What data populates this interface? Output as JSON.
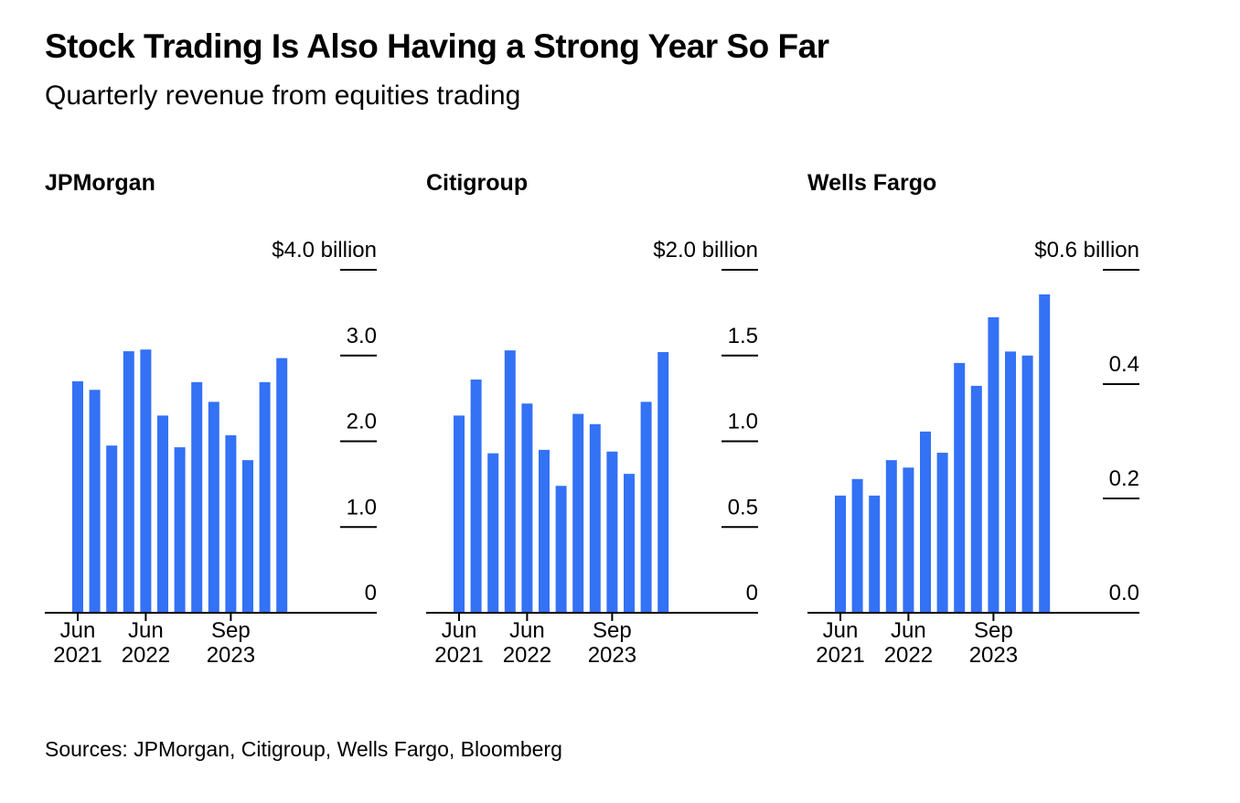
{
  "header": {
    "title": "Stock Trading Is Also Having a Strong Year So Far",
    "subtitle": "Quarterly revenue from equities trading"
  },
  "footer": {
    "source": "Sources: JPMorgan, Citigroup, Wells Fargo, Bloomberg"
  },
  "colors": {
    "bar": "#3371f5",
    "axis": "#000000"
  },
  "chart_data": [
    {
      "type": "bar",
      "title": "JPMorgan",
      "unit_label": "$4.0 billion",
      "ylim": [
        0,
        4.0
      ],
      "yticks": [
        0,
        1.0,
        2.0,
        3.0,
        4.0
      ],
      "ytick_labels": [
        "0",
        "1.0",
        "2.0",
        "3.0",
        "$4.0 billion"
      ],
      "categories": [
        "Q2 2021",
        "Q3 2021",
        "Q4 2021",
        "Q1 2022",
        "Q2 2022",
        "Q3 2022",
        "Q4 2022",
        "Q1 2023",
        "Q2 2023",
        "Q3 2023",
        "Q4 2023",
        "Q1 2024",
        "Q2 2024"
      ],
      "values": [
        2.7,
        2.6,
        1.95,
        3.05,
        3.07,
        2.3,
        1.93,
        2.69,
        2.46,
        2.07,
        1.78,
        2.69,
        2.97
      ],
      "xticks": [
        {
          "index": 0,
          "label_line1": "Jun",
          "label_line2": "2021"
        },
        {
          "index": 4,
          "label_line1": "Jun",
          "label_line2": "2022"
        },
        {
          "index": 9,
          "label_line1": "Sep",
          "label_line2": "2023"
        }
      ],
      "grid": false
    },
    {
      "type": "bar",
      "title": "Citigroup",
      "unit_label": "$2.0 billion",
      "ylim": [
        0,
        2.0
      ],
      "yticks": [
        0,
        0.5,
        1.0,
        1.5,
        2.0
      ],
      "ytick_labels": [
        "0",
        "0.5",
        "1.0",
        "1.5",
        "$2.0 billion"
      ],
      "categories": [
        "Q2 2021",
        "Q3 2021",
        "Q4 2021",
        "Q1 2022",
        "Q2 2022",
        "Q3 2022",
        "Q4 2022",
        "Q1 2023",
        "Q2 2023",
        "Q3 2023",
        "Q4 2023",
        "Q1 2024",
        "Q2 2024"
      ],
      "values": [
        1.15,
        1.36,
        0.93,
        1.53,
        1.22,
        0.95,
        0.74,
        1.16,
        1.1,
        0.94,
        0.81,
        1.23,
        1.52
      ],
      "xticks": [
        {
          "index": 0,
          "label_line1": "Jun",
          "label_line2": "2021"
        },
        {
          "index": 4,
          "label_line1": "Jun",
          "label_line2": "2022"
        },
        {
          "index": 9,
          "label_line1": "Sep",
          "label_line2": "2023"
        }
      ],
      "grid": false
    },
    {
      "type": "bar",
      "title": "Wells Fargo",
      "unit_label": "$0.6 billion",
      "ylim": [
        0,
        0.6
      ],
      "yticks": [
        0.0,
        0.2,
        0.4,
        0.6
      ],
      "ytick_labels": [
        "0.0",
        "0.2",
        "0.4",
        "$0.6 billion"
      ],
      "categories": [
        "Q2 2021",
        "Q3 2021",
        "Q4 2021",
        "Q1 2022",
        "Q2 2022",
        "Q3 2022",
        "Q4 2022",
        "Q1 2023",
        "Q2 2023",
        "Q3 2023",
        "Q4 2023",
        "Q1 2024",
        "Q2 2024"
      ],
      "values": [
        0.205,
        0.234,
        0.205,
        0.267,
        0.254,
        0.317,
        0.28,
        0.437,
        0.397,
        0.517,
        0.457,
        0.45,
        0.557
      ],
      "xticks": [
        {
          "index": 0,
          "label_line1": "Jun",
          "label_line2": "2021"
        },
        {
          "index": 4,
          "label_line1": "Jun",
          "label_line2": "2022"
        },
        {
          "index": 9,
          "label_line1": "Sep",
          "label_line2": "2023"
        }
      ],
      "grid": false
    }
  ]
}
